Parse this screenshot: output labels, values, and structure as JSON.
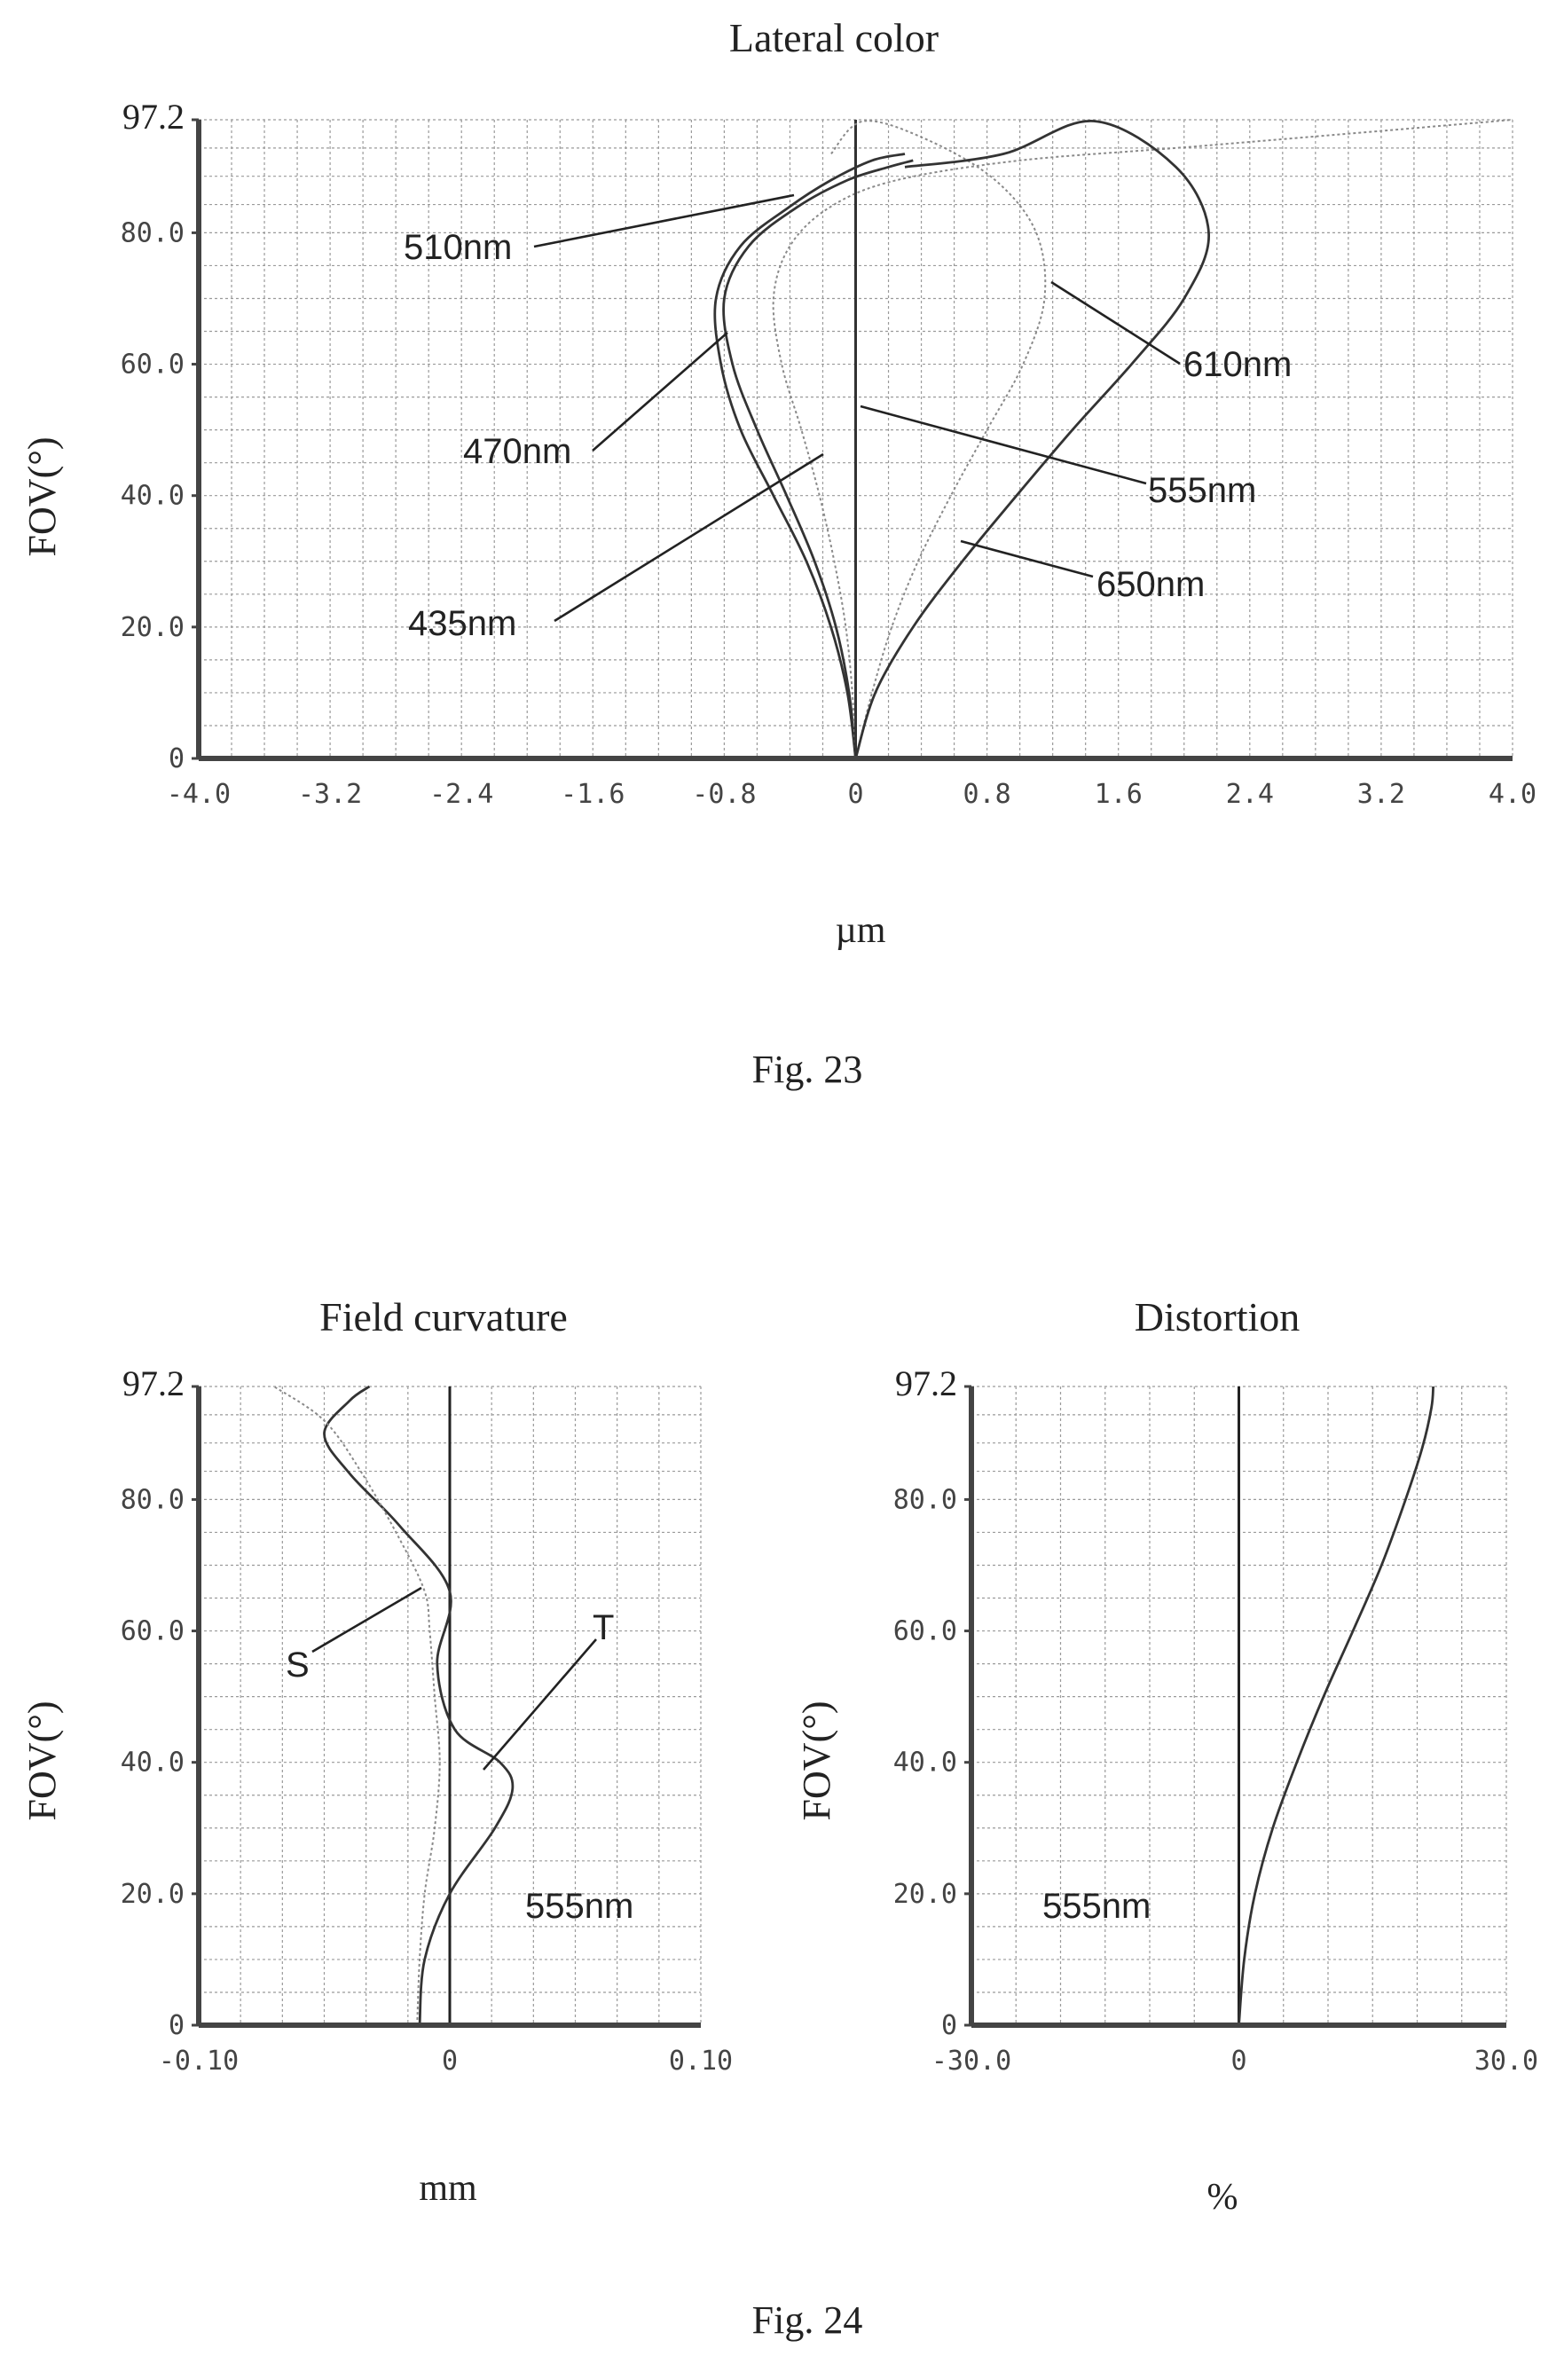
{
  "figures": {
    "fig23_caption": "Fig. 23",
    "fig24_caption": "Fig. 24"
  },
  "colors": {
    "solid": "#333333",
    "dotted": "#8a8a8a",
    "grid": "#9a9a9a"
  },
  "chart_data": [
    {
      "id": "lateral-color",
      "type": "line",
      "title": "Lateral color",
      "xlabel": "µm",
      "ylabel": "FOV(°)",
      "xlim": [
        -4.0,
        4.0
      ],
      "ylim": [
        0,
        97.2
      ],
      "xticks": [
        -4.0,
        -3.2,
        -2.4,
        -1.6,
        -0.8,
        0,
        0.8,
        1.6,
        2.4,
        3.2,
        4.0
      ],
      "xtick_labels": [
        "-4.0",
        "-3.2",
        "-2.4",
        "-1.6",
        "-0.8",
        "0",
        "0.8",
        "1.6",
        "2.4",
        "3.2",
        "4.0"
      ],
      "yticks": [
        0,
        20,
        40,
        60,
        80,
        97.2
      ],
      "ytick_labels": [
        "0",
        "20.0",
        "40.0",
        "60.0",
        "80.0",
        "97.2"
      ],
      "grid": true,
      "series": [
        {
          "name": "435nm",
          "style": "solid",
          "x": [
            0,
            -0.05,
            -0.15,
            -0.3,
            -0.5,
            -0.7,
            -0.82,
            -0.85,
            -0.7,
            -0.4,
            -0.15,
            0.1,
            0.3
          ],
          "y": [
            0,
            10,
            20,
            30,
            40,
            50,
            60,
            70,
            78,
            84,
            88,
            91,
            92
          ]
        },
        {
          "name": "470nm",
          "style": "solid",
          "x": [
            0,
            -0.04,
            -0.12,
            -0.25,
            -0.42,
            -0.6,
            -0.75,
            -0.8,
            -0.65,
            -0.35,
            -0.05,
            0.2,
            0.35
          ],
          "y": [
            0,
            10,
            20,
            30,
            40,
            50,
            60,
            70,
            78,
            84,
            88,
            90,
            91
          ]
        },
        {
          "name": "510nm",
          "style": "dotted",
          "x": [
            0,
            -0.02,
            -0.06,
            -0.13,
            -0.22,
            -0.33,
            -0.45,
            -0.5,
            -0.4,
            -0.15,
            0.25,
            1.0,
            2.0,
            3.2,
            4.0
          ],
          "y": [
            0,
            10,
            20,
            30,
            40,
            50,
            60,
            70,
            78,
            84,
            88,
            91,
            93,
            95.5,
            97.2
          ]
        },
        {
          "name": "555nm",
          "style": "solid",
          "x": [
            0,
            0,
            0,
            0,
            0,
            0,
            0,
            0,
            0,
            0,
            0
          ],
          "y": [
            0,
            10,
            20,
            30,
            40,
            50,
            60,
            70,
            80,
            90,
            97.2
          ]
        },
        {
          "name": "610nm",
          "style": "dotted",
          "x": [
            0,
            0.1,
            0.22,
            0.38,
            0.58,
            0.8,
            1.02,
            1.15,
            1.1,
            0.85,
            0.45,
            0.05,
            -0.15
          ],
          "y": [
            0,
            10,
            20,
            30,
            40,
            50,
            60,
            70,
            80,
            88,
            94,
            97,
            92
          ]
        },
        {
          "name": "650nm",
          "style": "solid",
          "x": [
            0,
            0.12,
            0.35,
            0.65,
            0.98,
            1.32,
            1.68,
            2.0,
            2.15,
            1.95,
            1.45,
            0.9,
            0.3
          ],
          "y": [
            0,
            10,
            20,
            30,
            40,
            50,
            60,
            70,
            80,
            90,
            97,
            92,
            90
          ]
        }
      ],
      "annotations": [
        {
          "text": "510nm",
          "series": "510nm"
        },
        {
          "text": "470nm",
          "series": "470nm"
        },
        {
          "text": "435nm",
          "series": "435nm"
        },
        {
          "text": "610nm",
          "series": "610nm"
        },
        {
          "text": "555nm",
          "series": "555nm"
        },
        {
          "text": "650nm",
          "series": "650nm"
        }
      ]
    },
    {
      "id": "field-curvature",
      "type": "line",
      "title": "Field curvature",
      "xlabel": "mm",
      "ylabel": "FOV(°)",
      "xlim": [
        -0.1,
        0.1
      ],
      "ylim": [
        0,
        97.2
      ],
      "xticks": [
        -0.1,
        0,
        0.1
      ],
      "xtick_labels": [
        "-0.10",
        "0",
        "0.10"
      ],
      "yticks": [
        0,
        20,
        40,
        60,
        80,
        97.2
      ],
      "ytick_labels": [
        "0",
        "20.0",
        "40.0",
        "60.0",
        "80.0",
        "97.2"
      ],
      "grid": true,
      "note": "555nm",
      "series": [
        {
          "name": "T",
          "style": "solid",
          "x": [
            -0.012,
            -0.01,
            0.0,
            0.018,
            0.025,
            0.02,
            0.002,
            -0.005,
            0.0,
            -0.02,
            -0.04,
            -0.05,
            -0.04,
            -0.032
          ],
          "y": [
            0,
            10,
            20,
            30,
            36,
            40,
            45,
            55,
            66,
            76,
            84,
            90,
            95,
            97.2
          ]
        },
        {
          "name": "S",
          "style": "dotted",
          "x": [
            -0.013,
            -0.012,
            -0.01,
            -0.006,
            -0.004,
            -0.006,
            -0.008,
            -0.01,
            -0.02,
            -0.035,
            -0.05,
            -0.07
          ],
          "y": [
            0,
            10,
            20,
            30,
            40,
            50,
            60,
            66,
            74,
            84,
            92,
            97.2
          ]
        }
      ],
      "annotations": [
        {
          "text": "S",
          "series": "S"
        },
        {
          "text": "T",
          "series": "T"
        }
      ]
    },
    {
      "id": "distortion",
      "type": "line",
      "title": "Distortion",
      "xlabel": "%",
      "ylabel": "FOV(°)",
      "xlim": [
        -30.0,
        30.0
      ],
      "ylim": [
        0,
        97.2
      ],
      "xticks": [
        -30.0,
        0,
        30.0
      ],
      "xtick_labels": [
        "-30.0",
        "0",
        "30.0"
      ],
      "yticks": [
        0,
        20,
        40,
        60,
        80,
        97.2
      ],
      "ytick_labels": [
        "0",
        "20.0",
        "40.0",
        "60.0",
        "80.0",
        "97.2"
      ],
      "grid": true,
      "note": "555nm",
      "series": [
        {
          "name": "555nm",
          "style": "solid",
          "x": [
            0,
            0.6,
            1.8,
            3.8,
            6.5,
            9.5,
            12.8,
            16.0,
            18.7,
            20.6,
            21.6,
            21.8
          ],
          "y": [
            0,
            10,
            20,
            30,
            40,
            50,
            60,
            70,
            80,
            88,
            94,
            97.2
          ]
        }
      ]
    }
  ]
}
